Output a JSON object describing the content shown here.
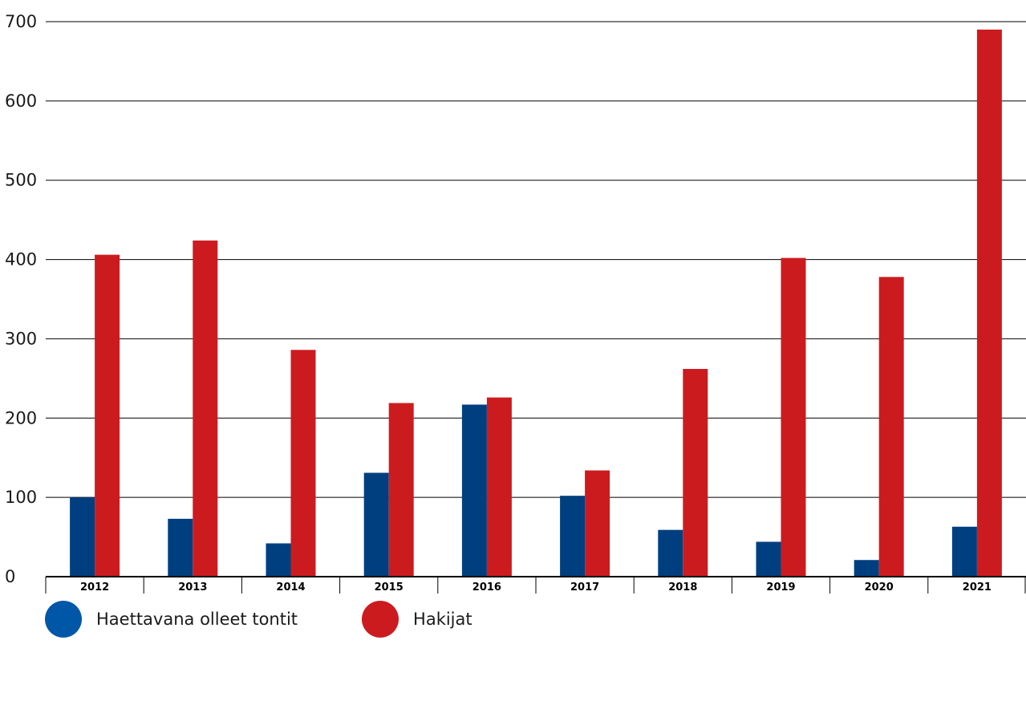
{
  "colors": {
    "series1": "#003f7f",
    "series2": "#cc1b1f",
    "grid": "#000000",
    "swatch1": "#0057a8"
  },
  "chart_data": {
    "type": "bar",
    "categories": [
      "2012",
      "2013",
      "2014",
      "2015",
      "2016",
      "2017",
      "2018",
      "2019",
      "2020",
      "2021"
    ],
    "series": [
      {
        "name": "Haettavana olleet tontit",
        "values": [
          100,
          73,
          42,
          131,
          217,
          102,
          59,
          44,
          21,
          63
        ]
      },
      {
        "name": "Hakijat",
        "values": [
          406,
          424,
          286,
          219,
          226,
          134,
          262,
          402,
          378,
          690
        ]
      }
    ],
    "y_ticks": [
      "0",
      "100",
      "200",
      "300",
      "400",
      "500",
      "600",
      "700"
    ],
    "ylim": [
      0,
      700
    ],
    "grid": true,
    "legend": "bottom-left",
    "data_table": true
  },
  "legend": {
    "item1": "Haettavana olleet tontit",
    "item2": "Hakijat"
  }
}
